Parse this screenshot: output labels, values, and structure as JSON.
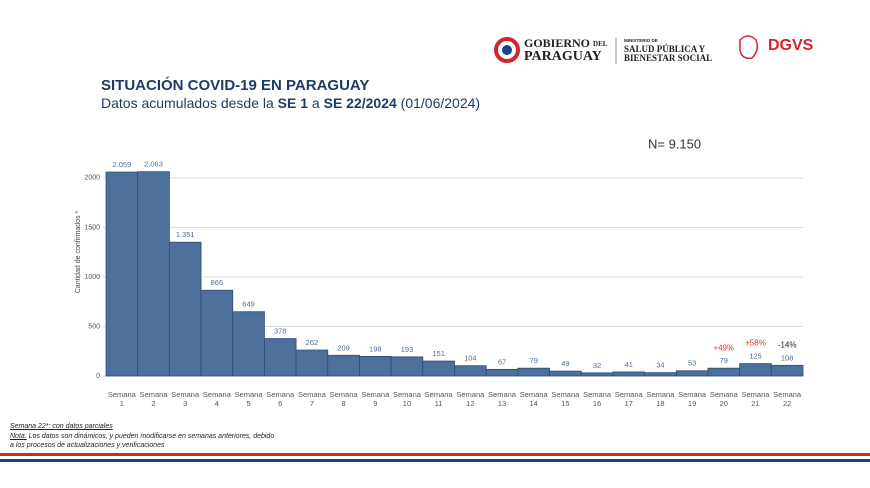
{
  "header": {
    "gov_line1": "GOBIERNO",
    "gov_del": "DEL",
    "gov_line2": "PARAGUAY",
    "ministry_line1": "MINISTERIO DE",
    "ministry_line2": "SALUD PÚBLICA Y",
    "ministry_line3": "BIENESTAR SOCIAL",
    "agency": "DGVS"
  },
  "chart_data": {
    "type": "bar",
    "title": "SITUACIÓN COVID-19 EN PARAGUAY",
    "subtitle_parts": [
      {
        "text": "Datos acumulados desde la ",
        "bold": false
      },
      {
        "text": "SE 1",
        "bold": true
      },
      {
        "text": " a ",
        "bold": false
      },
      {
        "text": "SE 22/2024",
        "bold": true
      },
      {
        "text": " (01/06/2024)",
        "bold": false
      }
    ],
    "total_label": "N= 9.150",
    "y_label": "Cantidad de confirmados *",
    "categories": [
      "Semana 1",
      "Semana 2",
      "Semana 3",
      "Semana 4",
      "Semana 5",
      "Semana 6",
      "Semana 7",
      "Semana 8",
      "Semana 9",
      "Semana 10",
      "Semana 11",
      "Semana 12",
      "Semana 13",
      "Semana 14",
      "Semana 15",
      "Semana 16",
      "Semana 17",
      "Semana 18",
      "Semana 19",
      "Semana 20",
      "Semana 21",
      "Semana 22"
    ],
    "values": [
      2059,
      2063,
      1351,
      866,
      649,
      378,
      262,
      209,
      198,
      193,
      151,
      104,
      67,
      79,
      49,
      32,
      41,
      34,
      53,
      79,
      125,
      108
    ],
    "value_labels": [
      "2.059",
      "2.063",
      "1.351",
      "866",
      "649",
      "378",
      "262",
      "209",
      "198",
      "193",
      "151",
      "104",
      "67",
      "79",
      "49",
      "32",
      "41",
      "34",
      "53",
      "79",
      "125",
      "108"
    ],
    "change_labels": [
      null,
      null,
      null,
      null,
      null,
      null,
      null,
      null,
      null,
      null,
      null,
      null,
      null,
      null,
      null,
      null,
      null,
      null,
      null,
      "+49%",
      "+58%",
      "-14%"
    ],
    "change_colors": [
      null,
      null,
      null,
      null,
      null,
      null,
      null,
      null,
      null,
      null,
      null,
      null,
      null,
      null,
      null,
      null,
      null,
      null,
      null,
      "#e0342b",
      "#e0342b",
      "#222222"
    ],
    "color": "#4c6f9b",
    "ylim": [
      0,
      2100
    ],
    "yticks": [
      0,
      500,
      1000,
      1500,
      2000
    ],
    "grid": true,
    "footnote": "Semana 22*: con datos parciales",
    "note_label": "Nota:",
    "note_text": " Los datos son dinámicos, y pueden modificarse en semanas anteriores, debido a los procesos de actualizaciones y verificaciones"
  }
}
